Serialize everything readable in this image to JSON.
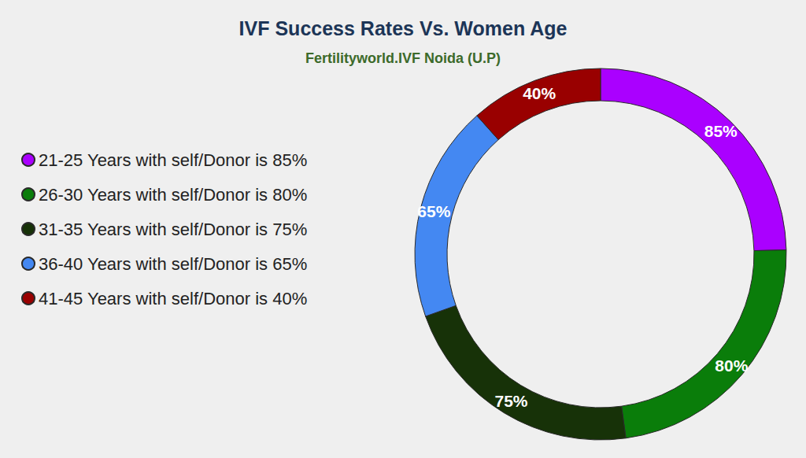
{
  "chart_data": {
    "type": "pie",
    "title": "IVF Success Rates Vs. Women Age",
    "subtitle": "Fertilityworld.IVF Noida (U.P)",
    "categories": [
      "21-25 Years with self/Donor is 85%",
      "26-30 Years with self/Donor is 80%",
      "31-35 Years with self/Donor is 75%",
      "36-40 Years with self/Donor is 65%",
      "41-45 Years with self/Donor is 40%"
    ],
    "values": [
      85,
      80,
      75,
      65,
      40
    ],
    "value_labels": [
      "85%",
      "80%",
      "75%",
      "65%",
      "40%"
    ],
    "colors": [
      "#aa00ff",
      "#0a7d0a",
      "#173208",
      "#4488f2",
      "#990000"
    ],
    "data_labels": true,
    "legend": "left"
  }
}
